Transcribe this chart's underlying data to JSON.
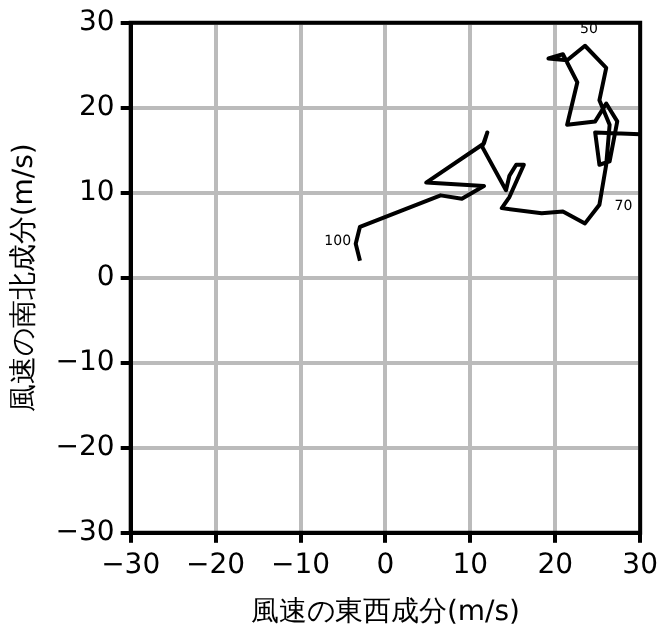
{
  "chart_data": {
    "type": "line",
    "xlabel": "風速の東西成分(m/s)",
    "ylabel": "風速の南北成分(m/s)",
    "xlim": [
      -30,
      30
    ],
    "ylim": [
      -30,
      30
    ],
    "xticks": [
      {
        "value": -30,
        "label": "−30"
      },
      {
        "value": -20,
        "label": "−20"
      },
      {
        "value": -10,
        "label": "−10"
      },
      0,
      10,
      20,
      30
    ],
    "yticks": [
      {
        "value": -30,
        "label": "−30"
      },
      {
        "value": -20,
        "label": "−20"
      },
      {
        "value": -10,
        "label": "−10"
      },
      0,
      10,
      20,
      30
    ],
    "grid": true,
    "legend": false,
    "marker": "none",
    "line_style": "solid",
    "series": [
      {
        "color": "#000000",
        "x": [
          -3,
          -3.5,
          -3,
          6.5,
          9,
          11.6,
          4.8,
          11.6,
          12,
          11.4,
          14.2,
          14.6,
          15.4,
          16.3,
          14.6,
          13.7,
          18.4,
          20.9,
          23.5,
          25.2,
          26,
          26.4,
          25.2,
          26,
          23.5,
          21.4,
          19.2,
          20.9,
          22.6,
          21.4,
          24.7,
          26,
          27.3,
          26.4,
          25.2,
          24.7,
          30
        ],
        "values": [
          2,
          4,
          6,
          9.7,
          9.3,
          10.8,
          11.2,
          15.8,
          17.1,
          15.4,
          10.3,
          12,
          13.3,
          13.3,
          9.5,
          8.2,
          7.6,
          7.8,
          6.4,
          8.6,
          13.3,
          18,
          20.9,
          24.7,
          27.3,
          25.6,
          25.8,
          26.3,
          23,
          18,
          18.4,
          20.5,
          18.4,
          13.7,
          13.3,
          17.1,
          16.9
        ]
      }
    ],
    "annotations": [
      {
        "text": "50",
        "x": 23.5,
        "y": 27.3
      },
      {
        "text": "70",
        "x": 25.2,
        "y": 8.6
      },
      {
        "text": "100",
        "x": -3.5,
        "y": 4
      }
    ]
  }
}
